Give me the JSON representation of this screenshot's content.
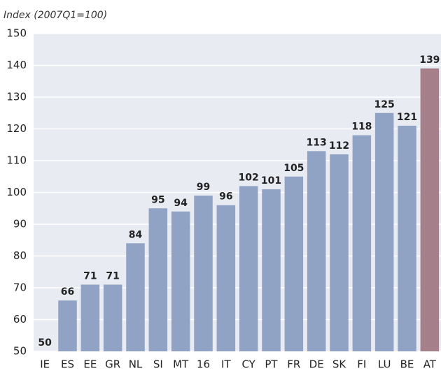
{
  "chart_data": {
    "type": "bar",
    "subtitle": "Index (2007Q1=100)",
    "categories": [
      "IE",
      "ES",
      "EE",
      "GR",
      "NL",
      "SI",
      "MT",
      "16",
      "IT",
      "CY",
      "PT",
      "FR",
      "DE",
      "SK",
      "FI",
      "LU",
      "BE",
      "AT"
    ],
    "values": [
      50,
      66,
      71,
      71,
      84,
      95,
      94,
      99,
      96,
      102,
      101,
      105,
      113,
      112,
      118,
      125,
      121,
      139
    ],
    "colors": [
      "#91a3c4",
      "#91a3c4",
      "#91a3c4",
      "#91a3c4",
      "#91a3c4",
      "#91a3c4",
      "#91a3c4",
      "#91a3c4",
      "#91a3c4",
      "#91a3c4",
      "#91a3c4",
      "#91a3c4",
      "#91a3c4",
      "#91a3c4",
      "#91a3c4",
      "#91a3c4",
      "#91a3c4",
      "#a57f8a"
    ],
    "ylim": [
      50,
      150
    ],
    "yticks": [
      50,
      60,
      70,
      80,
      90,
      100,
      110,
      120,
      130,
      140,
      150
    ],
    "grid": true
  }
}
